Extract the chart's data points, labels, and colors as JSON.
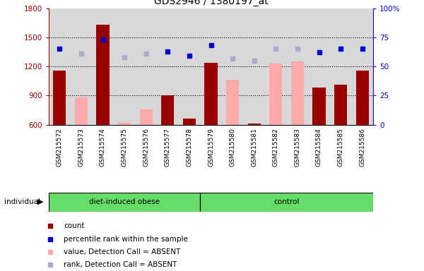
{
  "title": "GDS2946 / 1380197_at",
  "samples": [
    "GSM215572",
    "GSM215573",
    "GSM215574",
    "GSM215575",
    "GSM215576",
    "GSM215577",
    "GSM215578",
    "GSM215579",
    "GSM215580",
    "GSM215581",
    "GSM215582",
    "GSM215583",
    "GSM215584",
    "GSM215585",
    "GSM215586"
  ],
  "group_sizes": [
    7,
    8
  ],
  "group_labels": [
    "diet-induced obese",
    "control"
  ],
  "count_values": [
    1160,
    null,
    1630,
    null,
    null,
    900,
    660,
    1240,
    null,
    610,
    null,
    null,
    980,
    1010,
    1155
  ],
  "absent_value": [
    null,
    880,
    null,
    620,
    760,
    null,
    null,
    null,
    1060,
    null,
    1230,
    1250,
    null,
    null,
    null
  ],
  "percentile_rank": [
    65,
    null,
    73,
    null,
    null,
    63,
    59,
    68,
    null,
    null,
    null,
    null,
    62,
    65,
    65
  ],
  "absent_rank": [
    null,
    61,
    null,
    58,
    61,
    null,
    null,
    null,
    57,
    55,
    65,
    65,
    null,
    null,
    null
  ],
  "ylim_left": [
    600,
    1800
  ],
  "ylim_right": [
    0,
    100
  ],
  "yticks_left": [
    600,
    900,
    1200,
    1500,
    1800
  ],
  "yticks_right": [
    0,
    25,
    50,
    75,
    100
  ],
  "ytick_labels_right": [
    "0",
    "25",
    "50",
    "75",
    "100%"
  ],
  "hlines": [
    900,
    1200,
    1500
  ],
  "plot_bg_color": "#d8d8d8",
  "xtick_bg_color": "#d8d8d8",
  "bar_color_dark_red": "#990000",
  "bar_color_light_pink": "#ffaaaa",
  "dot_color_dark_blue": "#0000cc",
  "dot_color_light_blue": "#aaaacc",
  "group_bg_color": "#66dd66",
  "legend_labels": [
    "count",
    "percentile rank within the sample",
    "value, Detection Call = ABSENT",
    "rank, Detection Call = ABSENT"
  ],
  "legend_colors": [
    "#990000",
    "#0000cc",
    "#ffaaaa",
    "#aaaacc"
  ]
}
